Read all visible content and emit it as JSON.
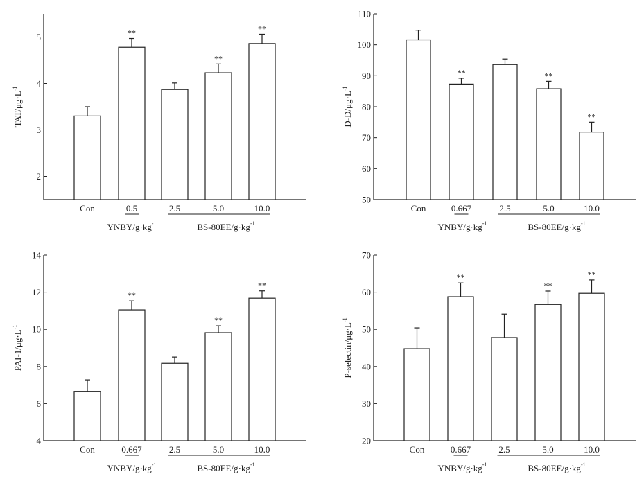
{
  "chart_data": [
    {
      "type": "bar",
      "ylabel": "TAT/μg·L",
      "ylabel_sup": "-1",
      "ylim": [
        1.5,
        5.5
      ],
      "yticks": [
        "2",
        "3",
        "4",
        "5"
      ],
      "categories": [
        "Con",
        "0.5",
        "2.5",
        "5.0",
        "10.0"
      ],
      "values": [
        3.3,
        4.78,
        3.87,
        4.23,
        4.86
      ],
      "error_upper": [
        3.5,
        4.97,
        4.01,
        4.42,
        5.06
      ],
      "significance": [
        "",
        "**",
        "",
        "**",
        "**"
      ],
      "groups": [
        {
          "label": "YNBY/g·kg",
          "sup": "-1",
          "categories": [
            "0.5"
          ]
        },
        {
          "label": "BS-80EE/g·kg",
          "sup": "-1",
          "categories": [
            "2.5",
            "5.0",
            "10.0"
          ]
        }
      ],
      "grid": false
    },
    {
      "type": "bar",
      "ylabel": "D-D/μg·L",
      "ylabel_sup": "-1",
      "ylim": [
        50,
        110
      ],
      "yticks": [
        "50",
        "60",
        "70",
        "80",
        "90",
        "100",
        "110"
      ],
      "categories": [
        "Con",
        "0.667",
        "2.5",
        "5.0",
        "10.0"
      ],
      "values": [
        101.6,
        87.3,
        93.6,
        85.8,
        71.8
      ],
      "error_upper": [
        104.7,
        89.2,
        95.4,
        88.2,
        75.0
      ],
      "significance": [
        "",
        "**",
        "",
        "**",
        "**"
      ],
      "groups": [
        {
          "label": "YNBY/g·kg",
          "sup": "-1",
          "categories": [
            "0.667"
          ]
        },
        {
          "label": "BS-80EE/g·kg",
          "sup": "-1",
          "categories": [
            "2.5",
            "5.0",
            "10.0"
          ]
        }
      ],
      "grid": false
    },
    {
      "type": "bar",
      "ylabel": "PAI-1/μg·L",
      "ylabel_sup": "-1",
      "ylim": [
        4,
        14
      ],
      "yticks": [
        "4",
        "6",
        "8",
        "10",
        "12",
        "14"
      ],
      "categories": [
        "Con",
        "0.667",
        "2.5",
        "5.0",
        "10.0"
      ],
      "values": [
        6.66,
        11.05,
        8.17,
        9.82,
        11.68
      ],
      "error_upper": [
        7.28,
        11.53,
        8.51,
        10.19,
        12.07
      ],
      "significance": [
        "",
        "**",
        "",
        "**",
        "**"
      ],
      "groups": [
        {
          "label": "YNBY/g·kg",
          "sup": "-1",
          "categories": [
            "0.667"
          ]
        },
        {
          "label": "BS-80EE/g·kg",
          "sup": "-1",
          "categories": [
            "2.5",
            "5.0",
            "10.0"
          ]
        }
      ],
      "grid": false
    },
    {
      "type": "bar",
      "ylabel": "P-selectin/μg·L",
      "ylabel_sup": "-1",
      "ylim": [
        20,
        70
      ],
      "yticks": [
        "20",
        "30",
        "40",
        "50",
        "60",
        "70"
      ],
      "categories": [
        "Con",
        "0.667",
        "2.5",
        "5.0",
        "10.0"
      ],
      "values": [
        44.8,
        58.8,
        47.8,
        56.7,
        59.7
      ],
      "error_upper": [
        50.4,
        62.5,
        54.1,
        60.3,
        63.3
      ],
      "significance": [
        "",
        "**",
        "",
        "**",
        "**"
      ],
      "groups": [
        {
          "label": "YNBY/g·kg",
          "sup": "-1",
          "categories": [
            "0.667"
          ]
        },
        {
          "label": "BS-80EE/g·kg",
          "sup": "-1",
          "categories": [
            "2.5",
            "5.0",
            "10.0"
          ]
        }
      ],
      "grid": false
    }
  ]
}
